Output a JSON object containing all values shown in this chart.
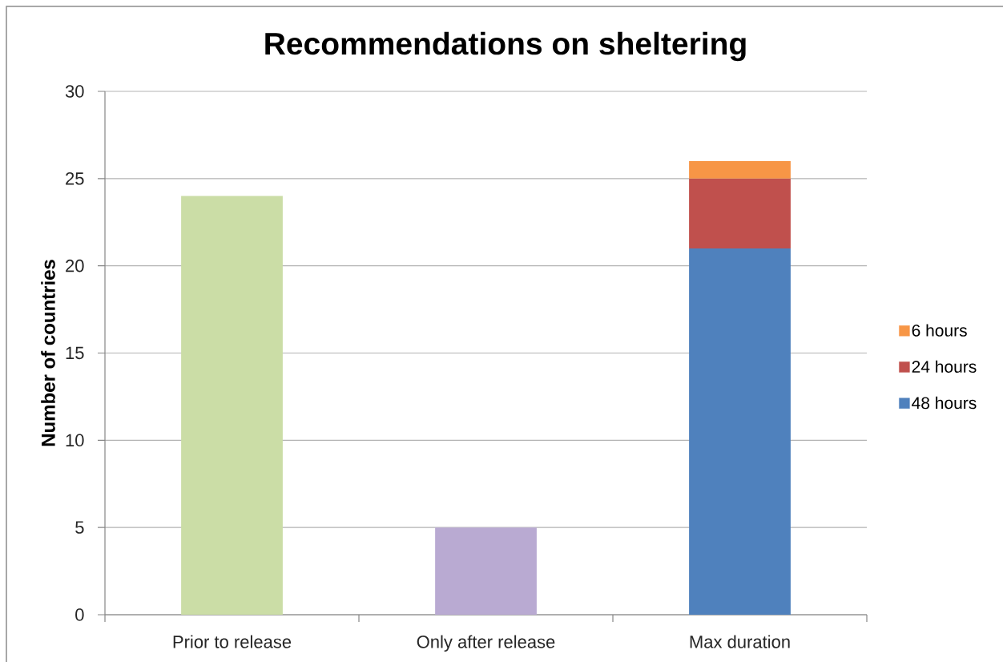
{
  "chart_data": {
    "type": "bar",
    "title": "Recommendations on sheltering",
    "ylabel": "Number of countries",
    "categories": [
      "Prior to release",
      "Only after release",
      "Max duration"
    ],
    "stacked": true,
    "series": [
      {
        "colors": [
          "#cbdda6",
          "#b9aad2",
          null
        ],
        "values": [
          24,
          5,
          null
        ]
      },
      {
        "name": "48 hours",
        "color": "#4f81bd",
        "values": [
          null,
          null,
          21
        ]
      },
      {
        "name": "24 hours",
        "color": "#c0504d",
        "values": [
          null,
          null,
          4
        ]
      },
      {
        "name": "6 hours",
        "color": "#f79646",
        "values": [
          null,
          null,
          1
        ]
      }
    ],
    "ylim": [
      0,
      30
    ],
    "yticks": [
      0,
      5,
      10,
      15,
      20,
      25,
      30
    ],
    "grid": "y",
    "legend": "right"
  }
}
